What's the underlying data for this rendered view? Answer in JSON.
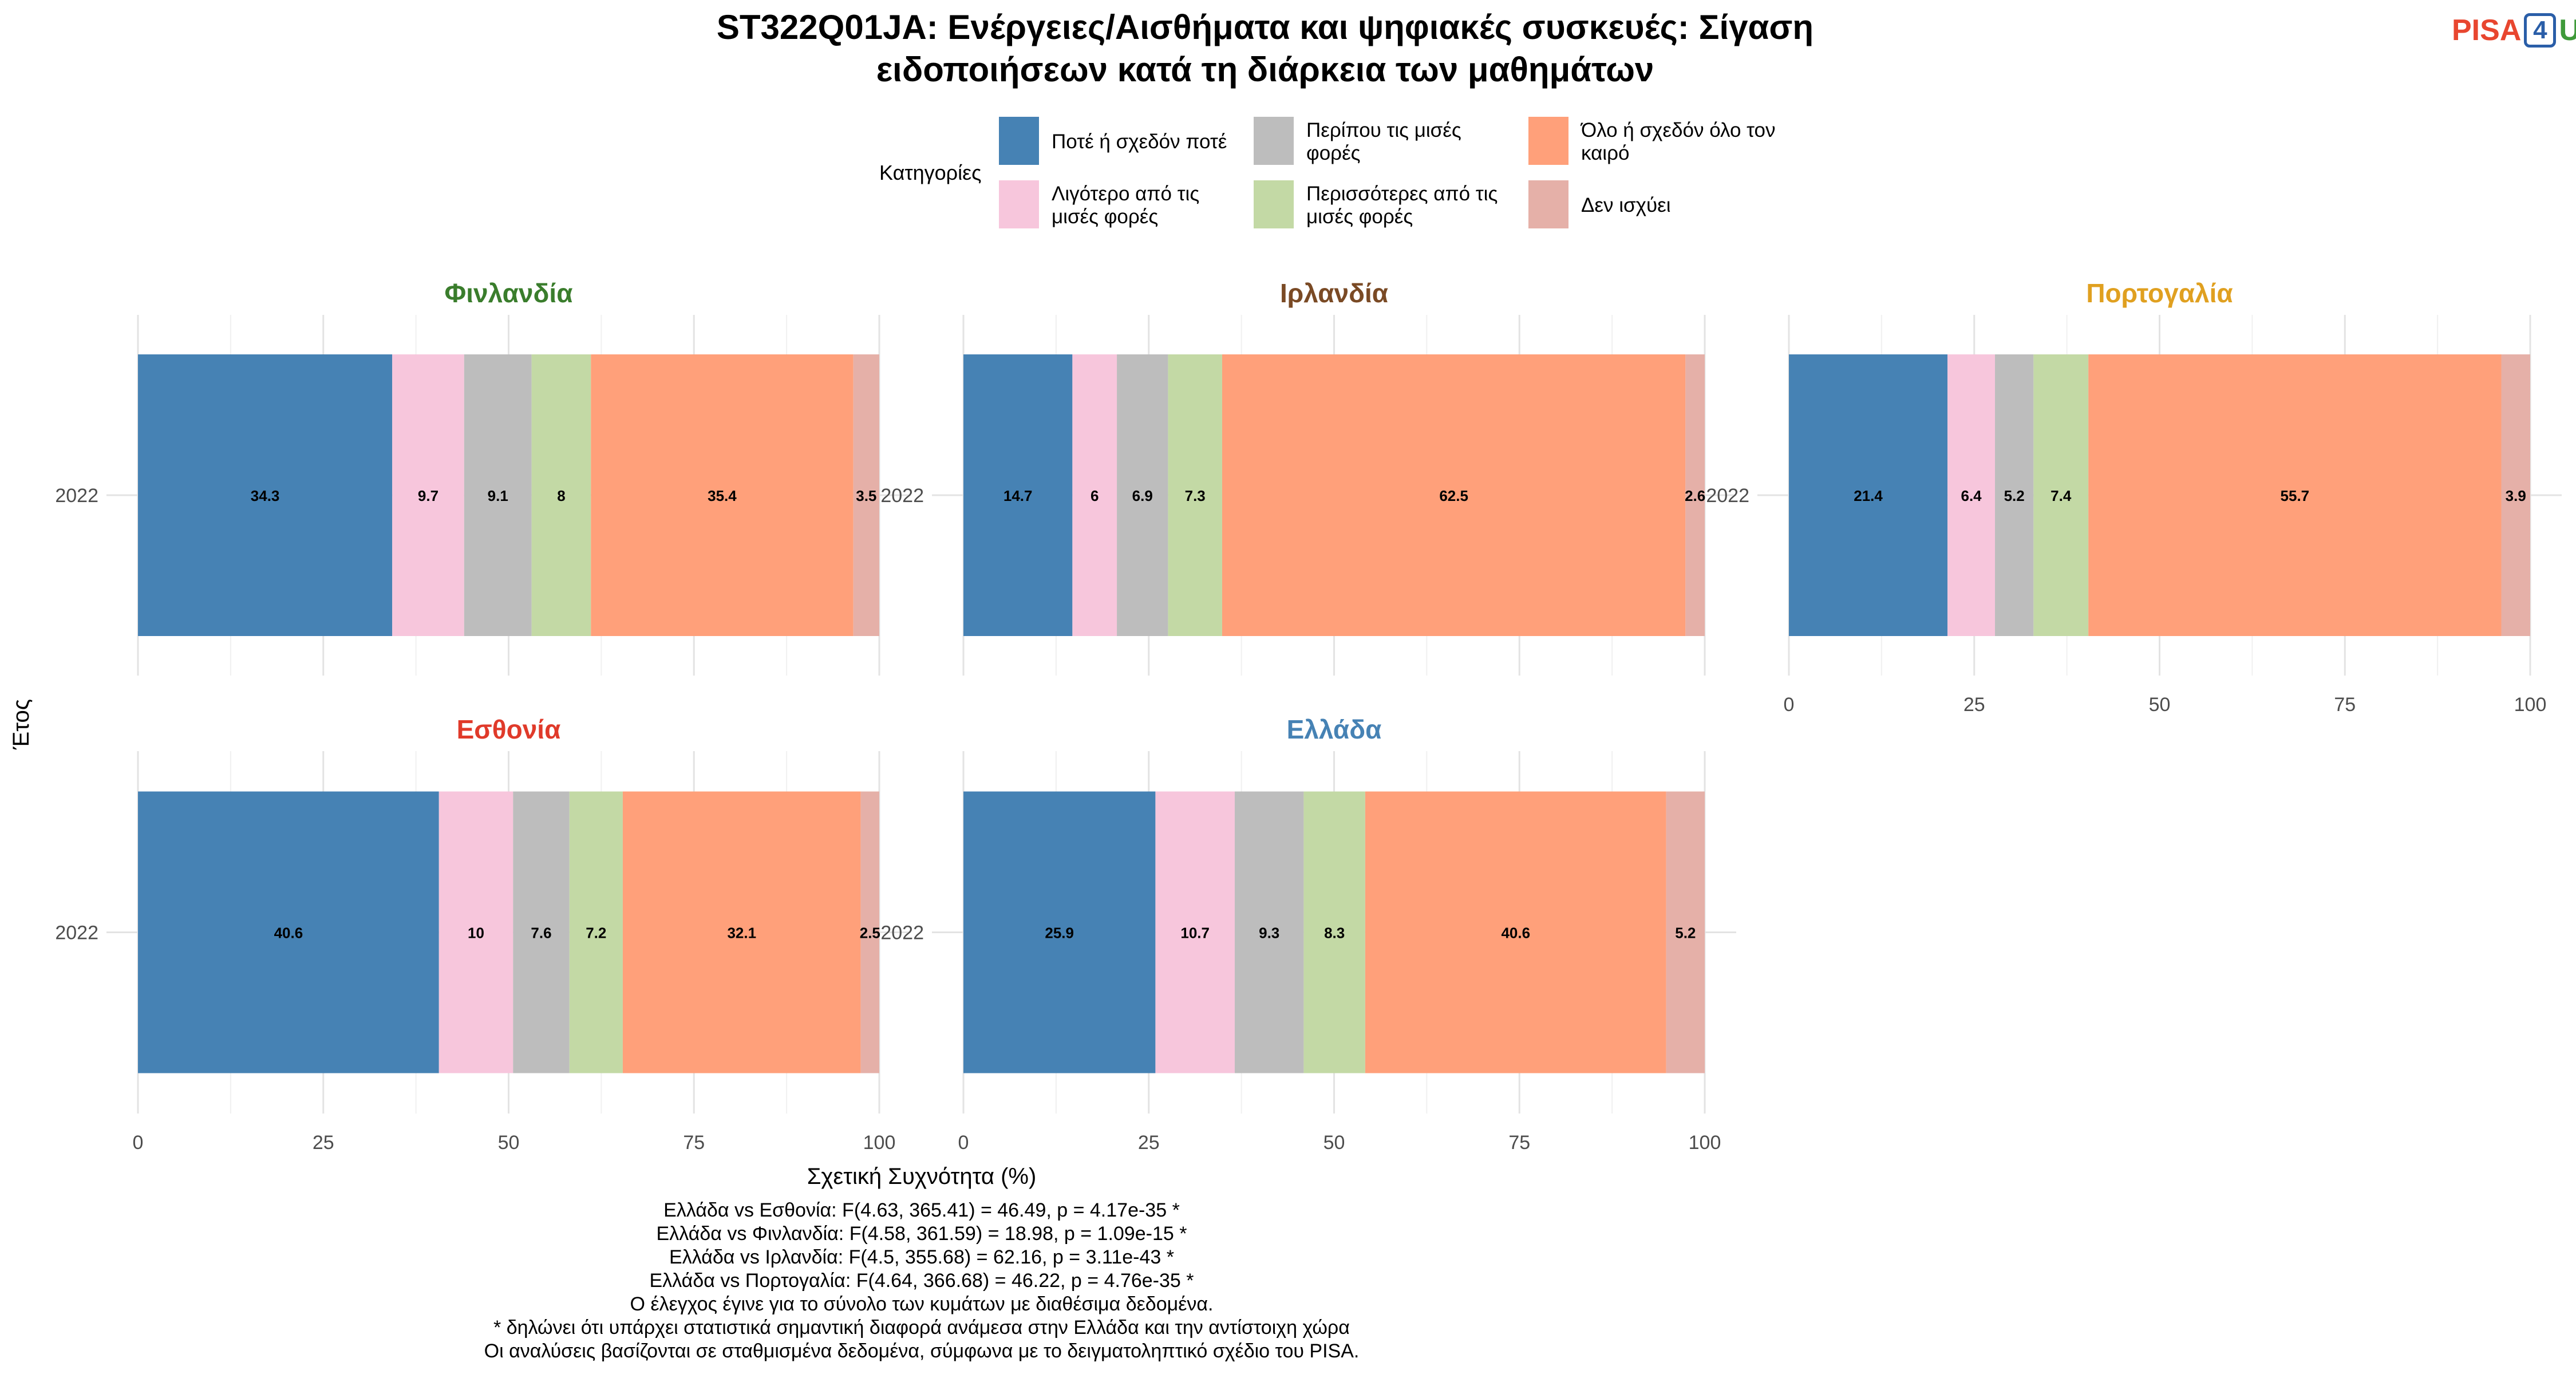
{
  "title_lines": [
    "ST322Q01JA: Ενέργειες/Αισθήματα και ψηφιακές συσκευές: Σίγαση",
    "ειδοποιήσεων κατά τη διάρκεια των μαθημάτων"
  ],
  "logo": {
    "part1": "PISA",
    "part2": "4",
    "part3": "U"
  },
  "legend": {
    "title": "Κατηγορίες",
    "items": [
      {
        "lines": [
          "Ποτέ ή σχεδόν ποτέ"
        ],
        "color": "#4682b4"
      },
      {
        "lines": [
          "Λιγότερο από τις",
          "μισές φορές"
        ],
        "color": "#f7c6dc"
      },
      {
        "lines": [
          "Περίπου τις μισές",
          "φορές"
        ],
        "color": "#bdbdbd"
      },
      {
        "lines": [
          "Περισσότερες από τις",
          "μισές φορές"
        ],
        "color": "#c3d9a5"
      },
      {
        "lines": [
          "Όλο ή σχεδόν όλο τον",
          "καιρό"
        ],
        "color": "#ffa07a"
      },
      {
        "lines": [
          "Δεν ισχύει"
        ],
        "color": "#e5b0a8"
      }
    ]
  },
  "chart_data": {
    "type": "bar",
    "orientation": "horizontal",
    "stacked": true,
    "facets": [
      {
        "country": "Φινλανδία",
        "title_color": "#3a7d2c",
        "year": "2022",
        "values": [
          34.3,
          9.7,
          9.1,
          8,
          35.4,
          3.5
        ]
      },
      {
        "country": "Ιρλανδία",
        "title_color": "#7a4a25",
        "year": "2022",
        "values": [
          14.7,
          6,
          6.9,
          7.3,
          62.5,
          2.6
        ]
      },
      {
        "country": "Πορτογαλία",
        "title_color": "#e0a020",
        "year": "2022",
        "values": [
          21.4,
          6.4,
          5.2,
          7.4,
          55.7,
          3.9
        ]
      },
      {
        "country": "Εσθονία",
        "title_color": "#e03a2a",
        "year": "2022",
        "values": [
          40.6,
          10,
          7.6,
          7.2,
          32.1,
          2.5
        ]
      },
      {
        "country": "Ελλάδα",
        "title_color": "#4682b4",
        "year": "2022",
        "values": [
          25.9,
          10.7,
          9.3,
          8.3,
          40.6,
          5.2
        ]
      }
    ],
    "xlabel": "Σχετική Συχνότητα (%)",
    "ylabel": "Έτος",
    "xlim": [
      0,
      100
    ],
    "xticks": [
      "0",
      "25",
      "50",
      "75",
      "100"
    ],
    "grid": true,
    "legend_position": "top"
  },
  "footnotes": [
    "Ελλάδα vs Εσθονία: F(4.63, 365.41) = 46.49, p = 4.17e-35 *",
    "Ελλάδα vs Φινλανδία: F(4.58, 361.59) = 18.98, p = 1.09e-15 *",
    "Ελλάδα vs Ιρλανδία: F(4.5, 355.68) = 62.16, p = 3.11e-43 *",
    "Ελλάδα vs Πορτογαλία: F(4.64, 366.68) = 46.22, p = 4.76e-35 *",
    "Ο έλεγχος έγινε για το σύνολο των κυμάτων με διαθέσιμα δεδομένα.",
    "* δηλώνει ότι υπάρχει στατιστικά σημαντική διαφορά ανάμεσα στην Ελλάδα και την αντίστοιχη χώρα",
    "Οι αναλύσεις βασίζονται σε σταθμισμένα δεδομένα, σύμφωνα με το δειγματοληπτικό σχέδιο του PISA."
  ]
}
